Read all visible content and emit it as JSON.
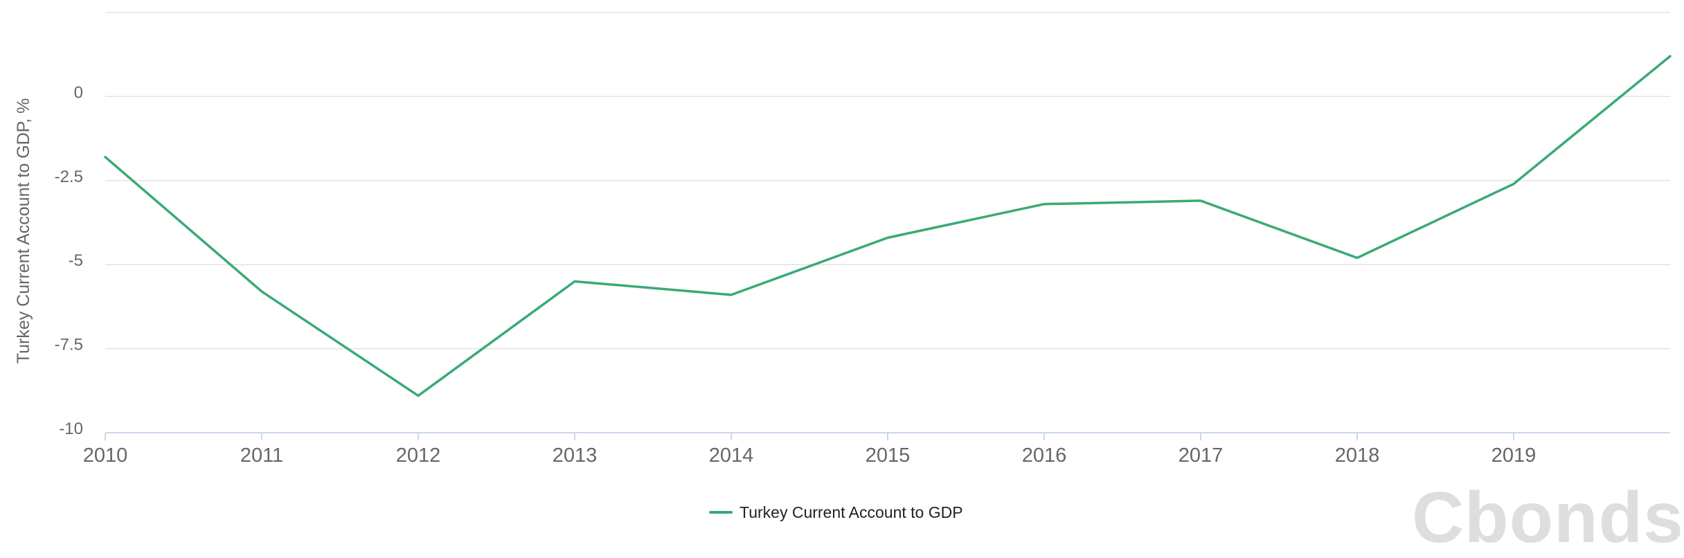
{
  "chart_data": {
    "type": "line",
    "ylabel": "Turkey Current Account to GDP, %",
    "xlabel": "",
    "ylim": [
      -10,
      2.5
    ],
    "xlim": [
      2010,
      2020
    ],
    "yticks": [
      0,
      -2.5,
      -5,
      -7.5,
      -10
    ],
    "ytick_labels": [
      "0",
      "-2.5",
      "-5",
      "-7.5",
      "-10"
    ],
    "xticks": [
      2010,
      2011,
      2012,
      2013,
      2014,
      2015,
      2016,
      2017,
      2018,
      2019
    ],
    "xtick_labels": [
      "2010",
      "2011",
      "2012",
      "2013",
      "2014",
      "2015",
      "2016",
      "2017",
      "2018",
      "2019"
    ],
    "grid": true,
    "legend_position": "bottom-center",
    "series": [
      {
        "name": "Turkey Current Account to GDP",
        "color": "#3aaa74",
        "x": [
          2010,
          2011,
          2012,
          2013,
          2014,
          2015,
          2016,
          2017,
          2018,
          2019,
          2020
        ],
        "y": [
          -1.8,
          -5.8,
          -8.9,
          -5.5,
          -5.9,
          -4.2,
          -3.2,
          -3.1,
          -4.8,
          -2.6,
          1.2
        ]
      }
    ]
  },
  "legend": {
    "label": "Turkey Current Account to GDP"
  },
  "watermark": {
    "text": "Cbonds"
  }
}
